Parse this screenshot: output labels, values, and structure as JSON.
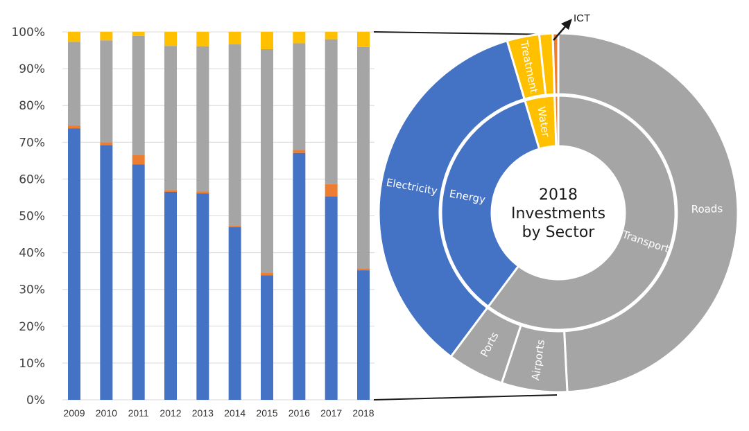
{
  "colors": {
    "energy": "#4472c4",
    "ict": "#ed7d31",
    "transport": "#a5a5a5",
    "water": "#ffc000",
    "grid": "#d9d9d9",
    "connector": "#1a1a1a"
  },
  "chart_data": [
    {
      "type": "bar",
      "stacked": true,
      "percent": true,
      "categories": [
        "2009",
        "2010",
        "2011",
        "2012",
        "2013",
        "2014",
        "2015",
        "2016",
        "2017",
        "2018"
      ],
      "y_ticks": [
        "0%",
        "10%",
        "20%",
        "30%",
        "40%",
        "50%",
        "60%",
        "70%",
        "80%",
        "90%",
        "100%"
      ],
      "ylim": [
        0,
        100
      ],
      "grid": true,
      "series": [
        {
          "key": "energy",
          "values": [
            73.8,
            69.2,
            64.0,
            56.5,
            56.1,
            46.9,
            33.8,
            67.1,
            55.3,
            35.2
          ]
        },
        {
          "key": "ict",
          "values": [
            0.8,
            0.8,
            2.6,
            0.5,
            0.5,
            0.5,
            0.8,
            0.8,
            3.3,
            0.5
          ]
        },
        {
          "key": "transport",
          "values": [
            22.7,
            27.7,
            32.3,
            39.2,
            39.5,
            49.2,
            60.7,
            29.0,
            39.4,
            60.2
          ]
        },
        {
          "key": "water",
          "values": [
            2.7,
            2.3,
            1.1,
            3.8,
            3.9,
            3.4,
            4.7,
            3.1,
            2.0,
            4.1
          ]
        }
      ]
    },
    {
      "type": "pie",
      "subtype": "sunburst",
      "title_lines": [
        "2018",
        "Investments",
        "by Sector"
      ],
      "inner_ring": [
        {
          "key": "transport",
          "label": "Transport",
          "value": 60.2
        },
        {
          "key": "energy",
          "label": "Energy",
          "value": 35.2
        },
        {
          "key": "water",
          "label": "Water",
          "value": 4.1
        },
        {
          "key": "ict",
          "label": "",
          "value": 0.5
        }
      ],
      "outer_ring": [
        {
          "key": "transport",
          "label": "Roads",
          "value": 49.2
        },
        {
          "key": "transport",
          "label": "Airports",
          "value": 5.9
        },
        {
          "key": "transport",
          "label": "Ports",
          "value": 5.1
        },
        {
          "key": "energy",
          "label": "Electricity",
          "value": 35.2
        },
        {
          "key": "water",
          "label": "Treatment",
          "value": 2.9
        },
        {
          "key": "water",
          "label": "",
          "value": 1.2
        },
        {
          "key": "ict",
          "label": "",
          "value": 0.5
        }
      ],
      "callout": "ICT"
    }
  ]
}
